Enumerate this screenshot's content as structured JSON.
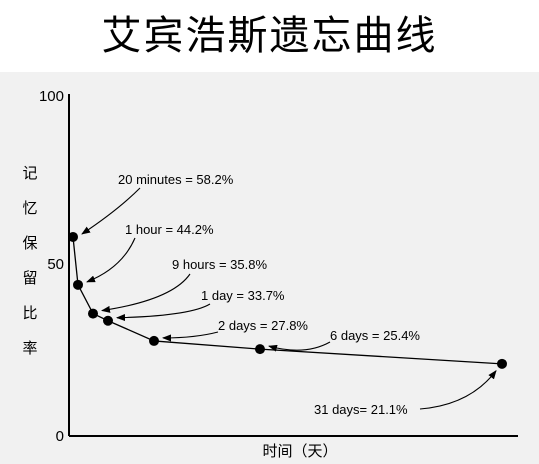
{
  "chart_data": {
    "type": "line",
    "title": "艾宾浩斯遗忘曲线",
    "xlabel": "时间（天）",
    "ylabel": "记忆保留比率",
    "ylim": [
      0,
      100
    ],
    "yticks": [
      "100",
      "50",
      "0"
    ],
    "grid": false,
    "series": [
      {
        "points": [
          {
            "label": "20 minutes = 58.2%",
            "x_days": 0.014,
            "y": 58.2
          },
          {
            "label": "1 hour = 44.2%",
            "x_days": 0.042,
            "y": 44.2
          },
          {
            "label": "9 hours = 35.8%",
            "x_days": 0.375,
            "y": 35.8
          },
          {
            "label": "1 day = 33.7%",
            "x_days": 1,
            "y": 33.7
          },
          {
            "label": "2 days = 27.8%",
            "x_days": 2,
            "y": 27.8
          },
          {
            "label": "6 days = 25.4%",
            "x_days": 6,
            "y": 25.4
          },
          {
            "label": "31 days= 21.1%",
            "x_days": 31,
            "y": 21.1
          }
        ]
      }
    ],
    "colors": {
      "line": "#000000",
      "marker": "#000000",
      "axis": "#000000",
      "background": "#f1f1f1"
    }
  }
}
